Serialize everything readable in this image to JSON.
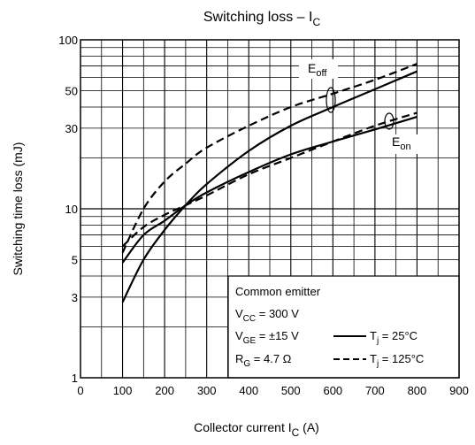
{
  "chart_data": {
    "type": "line",
    "title": "Switching loss – I",
    "title_sub": "C",
    "xlabel": "Collector current   I",
    "xlabel_sub": "C",
    "xlabel_unit": "  (A)",
    "ylabel": "Switching time loss    (mJ)",
    "xlim": [
      0,
      900
    ],
    "ylim": [
      1,
      100
    ],
    "yscale": "log",
    "grid": true,
    "x_ticks": [
      "0",
      "100",
      "200",
      "300",
      "400",
      "500",
      "600",
      "700",
      "800",
      "900"
    ],
    "y_ticks": [
      "1",
      "3",
      "5",
      "10",
      "30",
      "50",
      "100"
    ],
    "series": [
      {
        "name": "E",
        "name_sub": "off",
        "condition": "T",
        "condition_sub": "j",
        "condition_value": " = 25°C",
        "style": "solid",
        "x": [
          100,
          150,
          200,
          250,
          300,
          400,
          500,
          600,
          700,
          800
        ],
        "y": [
          2.8,
          5.0,
          7.5,
          10.5,
          14.0,
          22.0,
          31.0,
          40.0,
          51.0,
          65.0
        ]
      },
      {
        "name": "E",
        "name_sub": "off",
        "condition": "T",
        "condition_sub": "j",
        "condition_value": " = 125°C",
        "style": "dashed",
        "x": [
          100,
          150,
          200,
          250,
          300,
          400,
          500,
          600,
          700,
          800
        ],
        "y": [
          5.5,
          10.0,
          14.5,
          18.5,
          23.0,
          31.0,
          40.0,
          48.0,
          58.0,
          72.0
        ]
      },
      {
        "name": "E",
        "name_sub": "on",
        "condition": "T",
        "condition_sub": "j",
        "condition_value": " = 25°C",
        "style": "solid",
        "x": [
          100,
          150,
          200,
          250,
          300,
          400,
          500,
          600,
          700,
          800
        ],
        "y": [
          4.8,
          7.0,
          8.5,
          10.5,
          12.5,
          16.5,
          21.0,
          25.0,
          29.5,
          35.0
        ]
      },
      {
        "name": "E",
        "name_sub": "on",
        "condition": "T",
        "condition_sub": "j",
        "condition_value": " = 125°C",
        "style": "dashed",
        "x": [
          100,
          150,
          200,
          250,
          300,
          400,
          500,
          600,
          700,
          800
        ],
        "y": [
          6.0,
          7.8,
          9.2,
          10.5,
          12.0,
          16.0,
          20.0,
          25.0,
          31.0,
          37.0
        ]
      }
    ],
    "labels": {
      "eoff": {
        "main": "E",
        "sub": "off"
      },
      "eon": {
        "main": "E",
        "sub": "on"
      }
    },
    "legend": {
      "placement": "bottom-right",
      "title": "Common emitter",
      "vcc": {
        "main": "V",
        "sub": "CC",
        "value": " = 300 V"
      },
      "vge": {
        "main": "V",
        "sub": "GE",
        "value": " = ±15 V"
      },
      "rg": {
        "main": "R",
        "sub": "G",
        "value": " = 4.7 Ω"
      },
      "tj25": {
        "main": "T",
        "sub": "j",
        "value": " = 25°C"
      },
      "tj125": {
        "main": "T",
        "sub": "j",
        "value": " = 125°C"
      }
    }
  }
}
